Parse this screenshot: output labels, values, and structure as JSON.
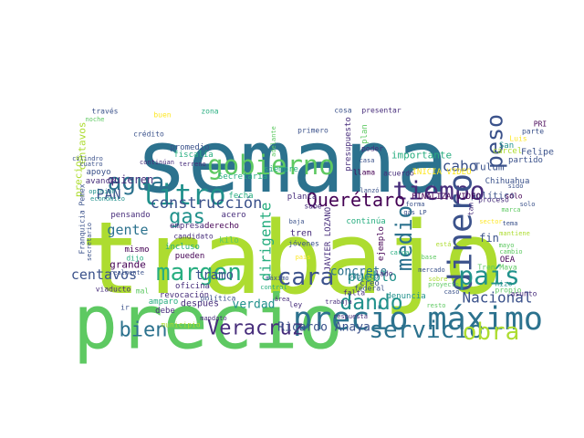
{
  "colors": {
    "background": "#ffffff",
    "palette": [
      "#440154",
      "#472d7b",
      "#3b528b",
      "#2c728e",
      "#21918c",
      "#28ae80",
      "#5ec962",
      "#addc30",
      "#fde725"
    ]
  },
  "words": [
    {
      "text": "semana",
      "color": "#2c728e"
    },
    {
      "text": "trabajo",
      "color": "#addc30"
    },
    {
      "text": "precio",
      "color": "#5ec962"
    },
    {
      "text": "precio máximo",
      "color": "#2c728e"
    },
    {
      "text": "gobierno",
      "color": "#5ec962"
    },
    {
      "text": "tiempo",
      "color": "#472d7b"
    },
    {
      "text": "litro",
      "color": "#21918c"
    },
    {
      "text": "agua",
      "color": "#2c728e"
    },
    {
      "text": "dinero",
      "color": "#3b528b"
    },
    {
      "text": "peso",
      "color": "#3b528b"
    },
    {
      "text": "margen",
      "color": "#28ae80"
    },
    {
      "text": "cara",
      "color": "#3b528b"
    },
    {
      "text": "país",
      "color": "#21918c"
    },
    {
      "text": "servicio",
      "color": "#2c728e"
    },
    {
      "text": "obra",
      "color": "#addc30"
    },
    {
      "text": "dando",
      "color": "#21918c"
    },
    {
      "text": "medio",
      "color": "#2c728e"
    },
    {
      "text": "Veracruz",
      "color": "#472d7b"
    },
    {
      "text": "bien",
      "color": "#2c728e"
    },
    {
      "text": "Querétaro",
      "color": "#440154"
    },
    {
      "text": "construcción",
      "color": "#3b528b"
    },
    {
      "text": "gas",
      "color": "#21918c"
    },
    {
      "text": "dirigente",
      "color": "#28ae80"
    },
    {
      "text": "gente",
      "color": "#2c728e"
    },
    {
      "text": "cabo",
      "color": "#3b528b"
    },
    {
      "text": "PAN",
      "color": "#3b528b"
    },
    {
      "text": "quieren",
      "color": "#472d7b"
    },
    {
      "text": "centavos",
      "color": "#3b528b"
    },
    {
      "text": "pueblo",
      "color": "#21918c"
    },
    {
      "text": "Nacional",
      "color": "#3b528b"
    },
    {
      "text": "concreto",
      "color": "#2c728e"
    },
    {
      "text": "tramo",
      "color": "#3b528b"
    },
    {
      "text": "Ricardo Anaya",
      "color": "#3b528b"
    },
    {
      "text": "verdad",
      "color": "#21918c"
    },
    {
      "text": "grande",
      "color": "#440154"
    },
    {
      "text": "fin",
      "color": "#3b528b"
    },
    {
      "text": "Tulum",
      "color": "#3b528b"
    },
    {
      "text": "importante",
      "color": "#28ae80"
    },
    {
      "text": "político",
      "color": "#3b528b"
    },
    {
      "text": "Felipe",
      "color": "#3b528b"
    },
    {
      "text": "Secretaría",
      "color": "#28ae80"
    },
    {
      "text": "pensando",
      "color": "#472d7b"
    },
    {
      "text": "empresa",
      "color": "#472d7b"
    },
    {
      "text": "derecho",
      "color": "#440154"
    },
    {
      "text": "acero",
      "color": "#472d7b"
    },
    {
      "text": "planta",
      "color": "#472d7b"
    },
    {
      "text": "sabe",
      "color": "#472d7b"
    },
    {
      "text": "tren",
      "color": "#472d7b"
    },
    {
      "text": "jóvenes",
      "color": "#3b528b"
    },
    {
      "text": "pueden",
      "color": "#440154"
    },
    {
      "text": "después",
      "color": "#472d7b"
    },
    {
      "text": "debe",
      "color": "#472d7b"
    },
    {
      "text": "amparo",
      "color": "#28ae80"
    },
    {
      "text": "revocación",
      "color": "#472d7b"
    },
    {
      "text": "oficina",
      "color": "#472d7b"
    },
    {
      "text": "municipio",
      "color": "#addc30"
    },
    {
      "text": "primero",
      "color": "#3b528b"
    },
    {
      "text": "precios",
      "color": "#addc30"
    },
    {
      "text": "centavos",
      "color": "#addc30"
    },
    {
      "text": "apoyo",
      "color": "#3b528b"
    },
    {
      "text": "avance",
      "color": "#472d7b"
    },
    {
      "text": "promedio",
      "color": "#3b528b"
    },
    {
      "text": "fiscalía",
      "color": "#28ae80"
    },
    {
      "text": "crédito",
      "color": "#3b528b"
    },
    {
      "text": "cosa",
      "color": "#3b528b"
    },
    {
      "text": "presentar",
      "color": "#472d7b"
    },
    {
      "text": "través",
      "color": "#3b528b"
    },
    {
      "text": "buen",
      "color": "#fde725"
    },
    {
      "text": "zona",
      "color": "#28ae80"
    },
    {
      "text": "INICIA VIDEO",
      "color": "#fde725"
    },
    {
      "text": "FINALIZA VIDEO",
      "color": "#440154"
    },
    {
      "text": "JAVIER LOZANO",
      "color": "#472d7b"
    },
    {
      "text": "Tren Maya",
      "color": "#5ec962"
    },
    {
      "text": "OEA",
      "color": "#440154"
    },
    {
      "text": "Chihuahua",
      "color": "#3b528b"
    },
    {
      "text": "partido",
      "color": "#3b528b"
    },
    {
      "text": "cárcel",
      "color": "#addc30"
    },
    {
      "text": "San",
      "color": "#21918c"
    },
    {
      "text": "parte",
      "color": "#3b528b"
    },
    {
      "text": "PRI",
      "color": "#440154"
    },
    {
      "text": "llama",
      "color": "#440154"
    },
    {
      "text": "acuerdo",
      "color": "#472d7b"
    },
    {
      "text": "creo",
      "color": "#3b528b"
    },
    {
      "text": "público",
      "color": "#2c728e"
    },
    {
      "text": "federal",
      "color": "#3b528b"
    },
    {
      "text": "falta",
      "color": "#472d7b"
    },
    {
      "text": "denuncia",
      "color": "#21918c"
    },
    {
      "text": "lado",
      "color": "#472d7b"
    },
    {
      "text": "ejemplo",
      "color": "#440154"
    },
    {
      "text": "continúa",
      "color": "#28ae80"
    },
    {
      "text": "poder",
      "color": "#472d7b"
    },
    {
      "text": "plan",
      "color": "#5ec962"
    },
    {
      "text": "presupuesto",
      "color": "#472d7b"
    },
    {
      "text": "mismo",
      "color": "#440154"
    },
    {
      "text": "dijo",
      "color": "#28ae80"
    },
    {
      "text": "incluso",
      "color": "#28ae80"
    },
    {
      "text": "candidato",
      "color": "#472d7b"
    },
    {
      "text": "kilo",
      "color": "#5ec962"
    },
    {
      "text": "fecha",
      "color": "#28ae80"
    },
    {
      "text": "siempre",
      "color": "#28ae80"
    },
    {
      "text": "terreno",
      "color": "#472d7b"
    },
    {
      "text": "continúan",
      "color": "#472d7b"
    },
    {
      "text": "Franquicia Pemex",
      "color": "#3b528b"
    },
    {
      "text": "secretario",
      "color": "#3b528b"
    },
    {
      "text": "viaducto",
      "color": "#472d7b"
    },
    {
      "text": "realmente",
      "color": "#3b528b"
    },
    {
      "text": "política",
      "color": "#3b528b"
    },
    {
      "text": "mandato",
      "color": "#472d7b"
    },
    {
      "text": "respuesta",
      "color": "#472d7b"
    },
    {
      "text": "trabaja",
      "color": "#472d7b"
    },
    {
      "text": "proceso",
      "color": "#472d7b"
    },
    {
      "text": "sólo",
      "color": "#440154"
    },
    {
      "text": "asunto",
      "color": "#472d7b"
    },
    {
      "text": "propio",
      "color": "#5ec962"
    },
    {
      "text": "hizo",
      "color": "#21918c"
    },
    {
      "text": "ley",
      "color": "#472d7b"
    },
    {
      "text": "área",
      "color": "#472d7b"
    },
    {
      "text": "control",
      "color": "#28ae80"
    },
    {
      "text": "noche",
      "color": "#5ec962"
    },
    {
      "text": "cuatro",
      "color": "#3b528b"
    },
    {
      "text": "cilindro",
      "color": "#3b528b"
    },
    {
      "text": "opinión",
      "color": "#21918c"
    },
    {
      "text": "económico",
      "color": "#21918c"
    },
    {
      "text": "adelante",
      "color": "#5ec962"
    },
    {
      "text": "mal",
      "color": "#5ec962"
    },
    {
      "text": "ir",
      "color": "#3b528b"
    },
    {
      "text": "máximo",
      "color": "#3b528b"
    },
    {
      "text": "tan",
      "color": "#472d7b"
    },
    {
      "text": "forma",
      "color": "#3b528b"
    },
    {
      "text": "gas LP",
      "color": "#3b528b"
    },
    {
      "text": "Luis",
      "color": "#fde725"
    },
    {
      "text": "carga",
      "color": "#28ae80"
    },
    {
      "text": "baja",
      "color": "#3b528b"
    },
    {
      "text": "casa",
      "color": "#3b528b"
    },
    {
      "text": "sido",
      "color": "#3b528b"
    },
    {
      "text": "país",
      "color": "#fde725"
    },
    {
      "text": "lanzó",
      "color": "#3b528b"
    },
    {
      "text": "resto",
      "color": "#5ec962"
    },
    {
      "text": "proyecto",
      "color": "#5ec962"
    },
    {
      "text": "sobre",
      "color": "#addc30"
    },
    {
      "text": "sector",
      "color": "#fde725"
    },
    {
      "text": "marca",
      "color": "#5ec962"
    },
    {
      "text": "mayo",
      "color": "#5ec962"
    },
    {
      "text": "cambio",
      "color": "#5ec962"
    },
    {
      "text": "mercado",
      "color": "#3b528b"
    },
    {
      "text": "caso",
      "color": "#3b528b"
    },
    {
      "text": "solo",
      "color": "#3b528b"
    },
    {
      "text": "tema",
      "color": "#3b528b"
    },
    {
      "text": "base",
      "color": "#5ec962"
    },
    {
      "text": "está",
      "color": "#addc30"
    },
    {
      "text": "mantiene",
      "color": "#addc30"
    }
  ]
}
